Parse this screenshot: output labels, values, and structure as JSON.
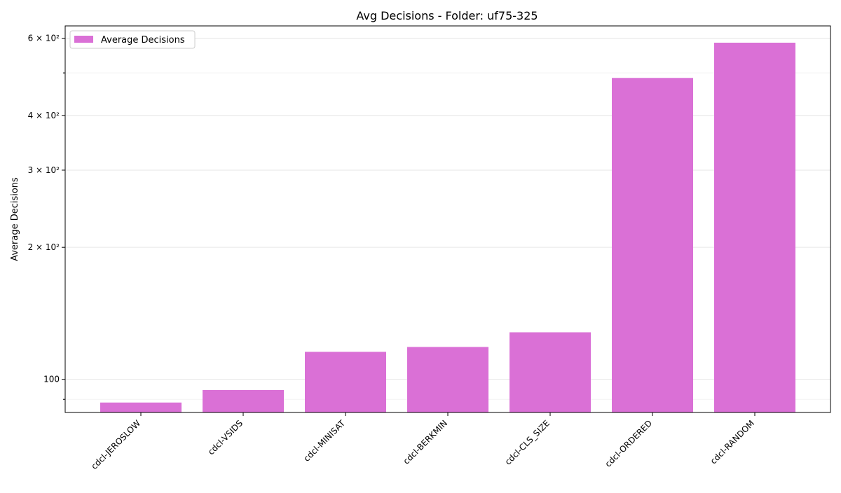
{
  "chart_data": {
    "type": "bar",
    "title": "Avg Decisions - Folder: uf75-325",
    "xlabel": "",
    "ylabel": "Average Decisions",
    "yscale": "log",
    "ylim": [
      84,
      640
    ],
    "grid": true,
    "legend_position": "top-left",
    "categories": [
      "cdcl-JEROSLOW",
      "cdcl-VSIDS",
      "cdcl-MINISAT",
      "cdcl-BERKMIN",
      "cdcl-CLS_SIZE",
      "cdcl-ORDERED",
      "cdcl-RANDOM"
    ],
    "series": [
      {
        "name": "Average Decisions",
        "color": "#da70d6",
        "values": [
          88.5,
          94.5,
          115.5,
          118.5,
          128.0,
          487.0,
          586.0
        ]
      }
    ],
    "y_ticks": [
      {
        "value": 100,
        "label": "100"
      },
      {
        "value": 200,
        "label": "2 × 10²"
      },
      {
        "value": 300,
        "label": "3 × 10²"
      },
      {
        "value": 400,
        "label": "4 × 10²"
      },
      {
        "value": 600,
        "label": "6 × 10²"
      }
    ],
    "y_minor_ticks": [
      90,
      500
    ]
  }
}
